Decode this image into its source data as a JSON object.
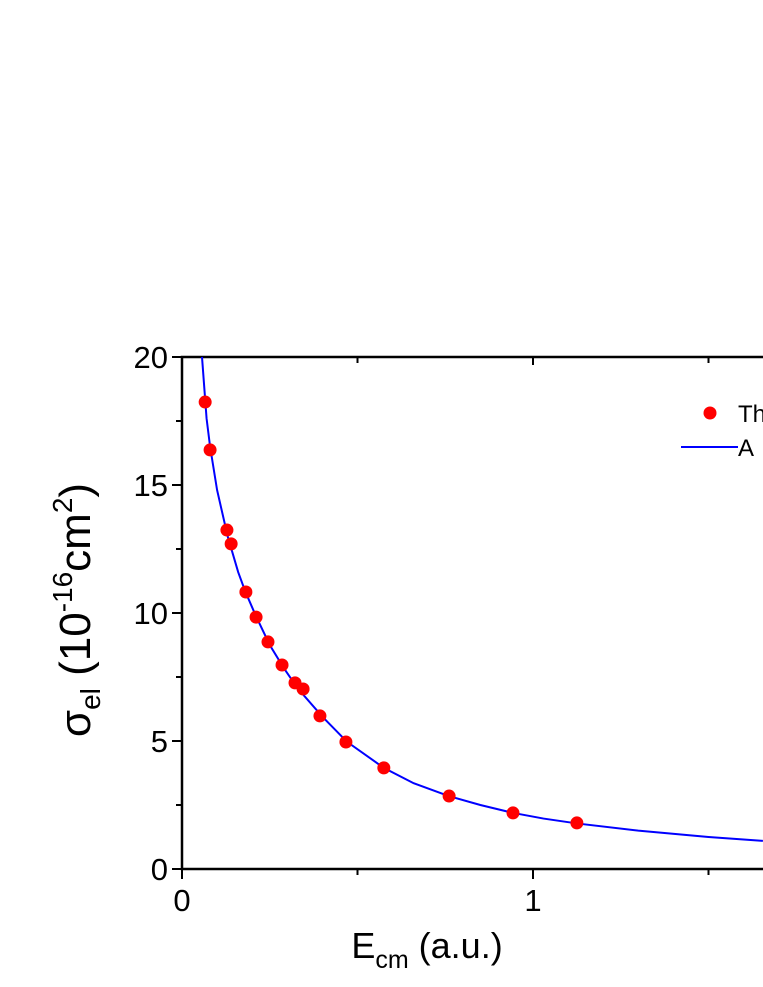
{
  "chart_data": {
    "type": "scatter",
    "title": "",
    "xlabel": {
      "main": "E",
      "sub": "cm",
      "rest": " (a.u.)"
    },
    "ylabel": {
      "main": "σ",
      "sub": "el",
      "rest1": " (10",
      "sup1": "-16",
      "rest2": "cm",
      "sup2": "2",
      "rest3": ")"
    },
    "xlim": [
      0,
      1.655
    ],
    "ylim": [
      0,
      20
    ],
    "x_ticks": [
      0,
      1
    ],
    "x_tick_labels": [
      "0",
      "1"
    ],
    "x_minor_ticks": [
      0.5,
      1.5
    ],
    "y_ticks": [
      0,
      5,
      10,
      15,
      20
    ],
    "y_tick_labels": [
      "0",
      "5",
      "10",
      "15",
      "20"
    ],
    "y_minor_ticks": [
      2.5,
      7.5,
      12.5,
      17.5
    ],
    "grid": false,
    "legend_placement": "top-right",
    "series": [
      {
        "name": "Th",
        "kind": "scatter",
        "color": "#ff0000",
        "x": [
          0.066,
          0.08,
          0.128,
          0.14,
          0.182,
          0.211,
          0.245,
          0.285,
          0.322,
          0.345,
          0.393,
          0.467,
          0.575,
          0.761,
          0.943,
          1.125
        ],
        "y": [
          18.24,
          16.37,
          13.24,
          12.7,
          10.82,
          9.84,
          8.87,
          7.97,
          7.27,
          7.03,
          5.98,
          4.96,
          3.95,
          2.85,
          2.19,
          1.8
        ]
      },
      {
        "name": "A",
        "kind": "line",
        "color": "#0000ff",
        "x": [
          0.057,
          0.07,
          0.08,
          0.1,
          0.13,
          0.16,
          0.18,
          0.21,
          0.25,
          0.29,
          0.33,
          0.4,
          0.47,
          0.575,
          0.66,
          0.76,
          0.85,
          0.94,
          1.03,
          1.125,
          1.3,
          1.5,
          1.655
        ],
        "y": [
          20,
          17.6,
          16.5,
          14.8,
          13.0,
          11.6,
          10.85,
          9.9,
          8.75,
          7.85,
          7.05,
          5.95,
          4.97,
          3.95,
          3.35,
          2.85,
          2.5,
          2.2,
          1.97,
          1.78,
          1.5,
          1.25,
          1.1
        ]
      }
    ]
  }
}
